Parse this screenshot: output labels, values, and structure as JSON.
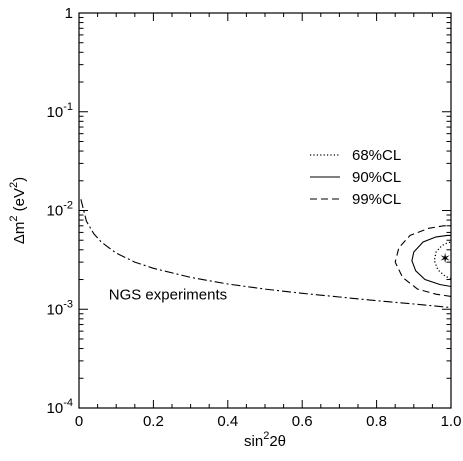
{
  "chart_data": {
    "type": "line",
    "title": "",
    "xlabel": "sin²2θ",
    "xlabel_parts": [
      "sin",
      "2",
      "2θ"
    ],
    "ylabel": "Δm² (eV²)",
    "ylabel_parts": [
      "Δm",
      "2",
      " (eV",
      "2",
      ")"
    ],
    "xlim": [
      0,
      1
    ],
    "ylim": [
      0.0001,
      1
    ],
    "yscale": "log",
    "grid": false,
    "legend_position": "top-right",
    "x_ticks": [
      {
        "value": 0,
        "label": "0"
      },
      {
        "value": 0.2,
        "label": "0.2"
      },
      {
        "value": 0.4,
        "label": "0.4"
      },
      {
        "value": 0.6,
        "label": "0.6"
      },
      {
        "value": 0.8,
        "label": "0.8"
      },
      {
        "value": 1.0,
        "label": "1.0"
      }
    ],
    "y_ticks": [
      {
        "value": 1,
        "base": "1",
        "exp": ""
      },
      {
        "value": 0.1,
        "base": "10",
        "exp": "-1"
      },
      {
        "value": 0.01,
        "base": "10",
        "exp": "-2"
      },
      {
        "value": 0.001,
        "base": "10",
        "exp": "-3"
      },
      {
        "value": 0.0001,
        "base": "10",
        "exp": "-4"
      }
    ],
    "series": [
      {
        "name": "68%CL",
        "style": "dotted",
        "points": [
          [
            1.0,
            0.00205
          ],
          [
            0.985,
            0.00215
          ],
          [
            0.965,
            0.0025
          ],
          [
            0.955,
            0.0031
          ],
          [
            0.96,
            0.0038
          ],
          [
            0.975,
            0.0044
          ],
          [
            0.99,
            0.0047
          ],
          [
            1.0,
            0.0048
          ]
        ]
      },
      {
        "name": "90%CL",
        "style": "solid",
        "points": [
          [
            1.0,
            0.0017
          ],
          [
            0.97,
            0.00178
          ],
          [
            0.93,
            0.002
          ],
          [
            0.905,
            0.00245
          ],
          [
            0.895,
            0.0031
          ],
          [
            0.9,
            0.0038
          ],
          [
            0.925,
            0.0048
          ],
          [
            0.96,
            0.0054
          ],
          [
            0.99,
            0.0056
          ],
          [
            1.0,
            0.0056
          ]
        ]
      },
      {
        "name": "99%CL",
        "style": "dashed",
        "points": [
          [
            1.0,
            0.00135
          ],
          [
            0.96,
            0.00142
          ],
          [
            0.91,
            0.0016
          ],
          [
            0.87,
            0.0021
          ],
          [
            0.85,
            0.003
          ],
          [
            0.86,
            0.0042
          ],
          [
            0.89,
            0.0056
          ],
          [
            0.94,
            0.0066
          ],
          [
            0.98,
            0.007
          ],
          [
            1.0,
            0.007
          ]
        ]
      },
      {
        "name": "NGS experiments",
        "style": "dashdot",
        "points": [
          [
            0.005,
            0.013
          ],
          [
            0.02,
            0.0078
          ],
          [
            0.04,
            0.0058
          ],
          [
            0.06,
            0.0048
          ],
          [
            0.08,
            0.0042
          ],
          [
            0.1,
            0.0037
          ],
          [
            0.15,
            0.003
          ],
          [
            0.2,
            0.0026
          ],
          [
            0.3,
            0.0021
          ],
          [
            0.4,
            0.0018
          ],
          [
            0.5,
            0.0016
          ],
          [
            0.6,
            0.00145
          ],
          [
            0.7,
            0.00133
          ],
          [
            0.8,
            0.00122
          ],
          [
            0.9,
            0.00113
          ],
          [
            1.0,
            0.00104
          ]
        ]
      }
    ],
    "best_fit_marker": {
      "symbol": "✶",
      "x": 0.995,
      "y": 0.0033
    },
    "annotations": [
      {
        "text": "NGS experiments",
        "x": 0.08,
        "y": 0.00125
      }
    ],
    "legend": [
      {
        "label": "68%CL",
        "style": "dotted"
      },
      {
        "label": "90%CL",
        "style": "solid"
      },
      {
        "label": "99%CL",
        "style": "dashed"
      }
    ]
  }
}
